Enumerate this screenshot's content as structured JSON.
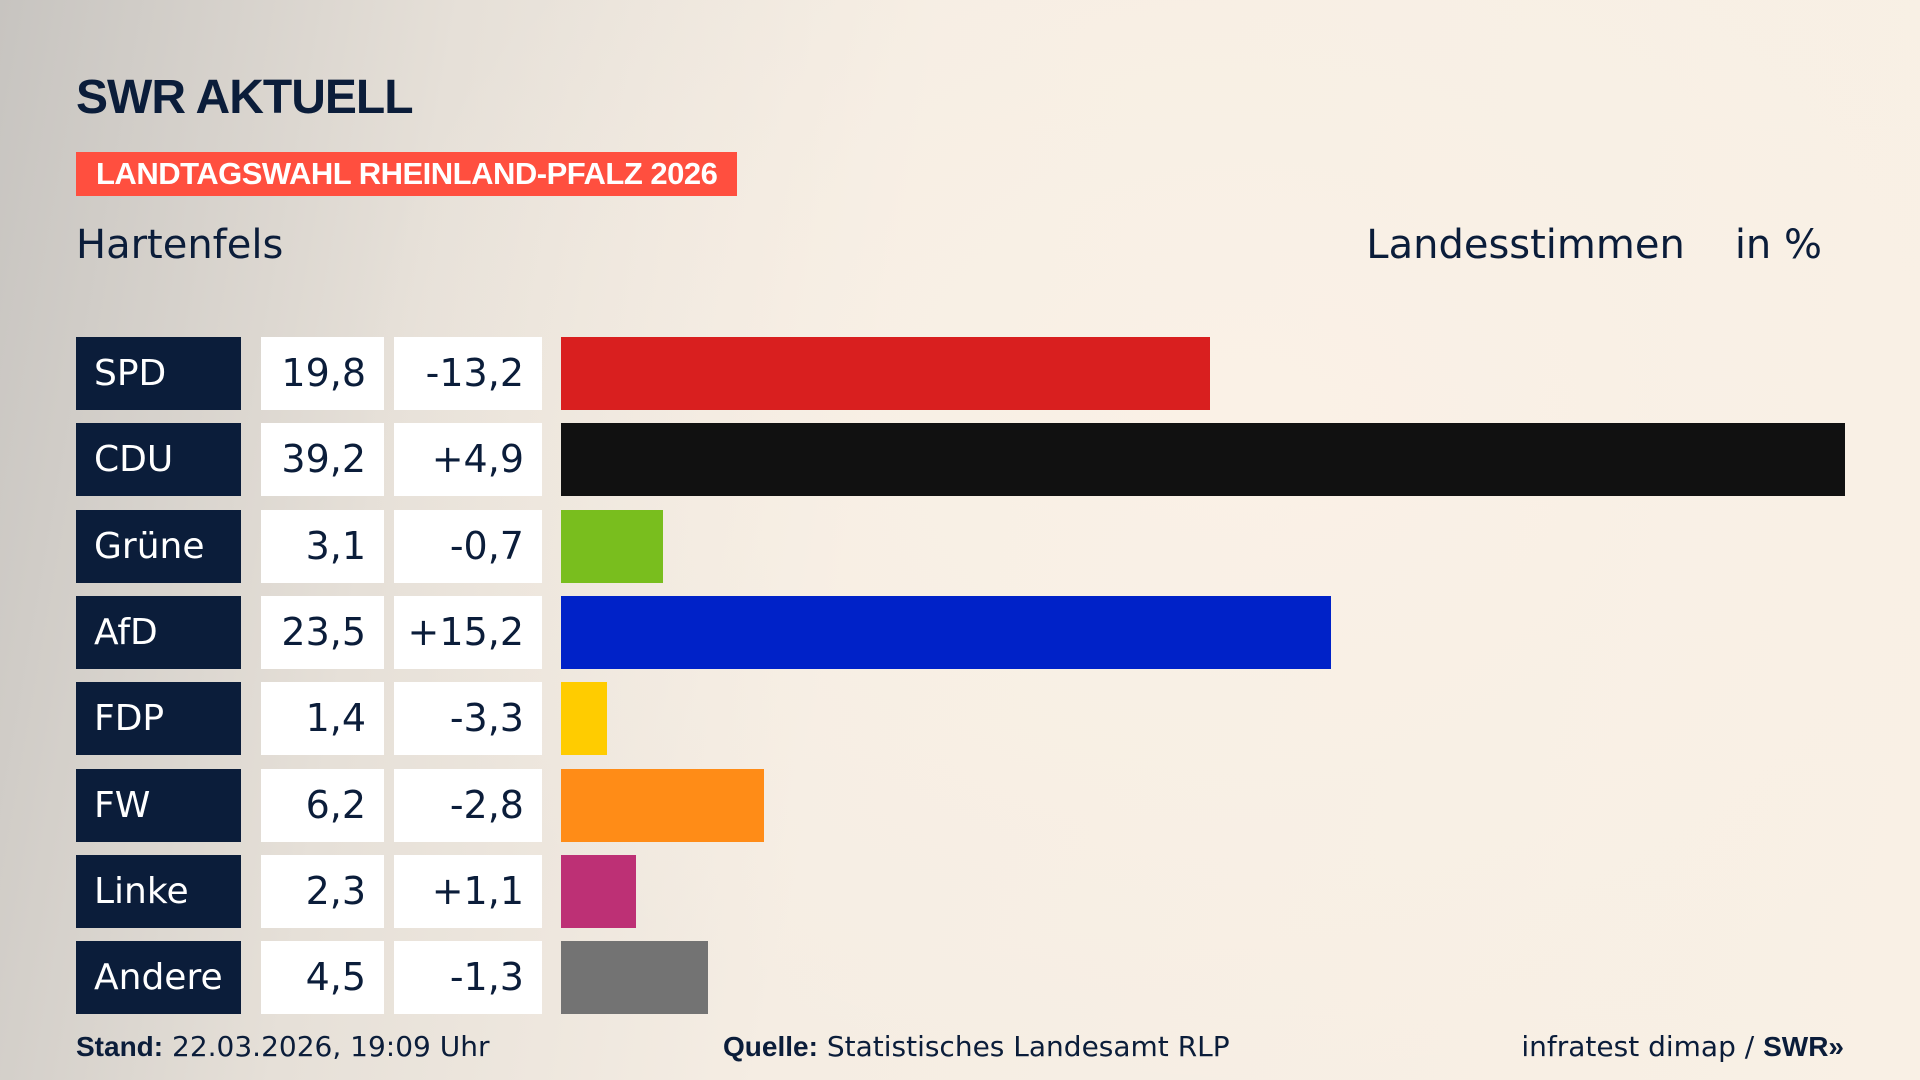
{
  "header": {
    "logo": "SWR AKTUELL",
    "banner": "LANDTAGSWAHL RHEINLAND-PFALZ 2026",
    "region": "Hartenfels",
    "measure": "Landesstimmen",
    "unit": "in %"
  },
  "chart_data": {
    "type": "bar",
    "orientation": "horizontal",
    "categories": [
      "SPD",
      "CDU",
      "Grüne",
      "AfD",
      "FDP",
      "FW",
      "Linke",
      "Andere"
    ],
    "values": [
      19.8,
      39.2,
      3.1,
      23.5,
      1.4,
      6.2,
      2.3,
      4.5
    ],
    "value_labels": [
      "19,8",
      "39,2",
      "3,1",
      "23,5",
      "1,4",
      "6,2",
      "2,3",
      "4,5"
    ],
    "diff_labels": [
      "-13,2",
      "+4,9",
      "-0,7",
      "+15,2",
      "-3,3",
      "-2,8",
      "+1,1",
      "-1,3"
    ],
    "colors": [
      "#d91f1f",
      "#111111",
      "#79be1e",
      "#0022c8",
      "#ffcc00",
      "#ff8c17",
      "#bd3075",
      "#737373"
    ],
    "title": "Landesstimmen",
    "ylabel": "in %"
  },
  "footer": {
    "stand_label": "Stand:",
    "stand": "22.03.2026, 19:09 Uhr",
    "source_label": "Quelle:",
    "source": "Statistisches Landesamt RLP",
    "credit": "infratest dimap /",
    "credit_logo": "SWR"
  }
}
